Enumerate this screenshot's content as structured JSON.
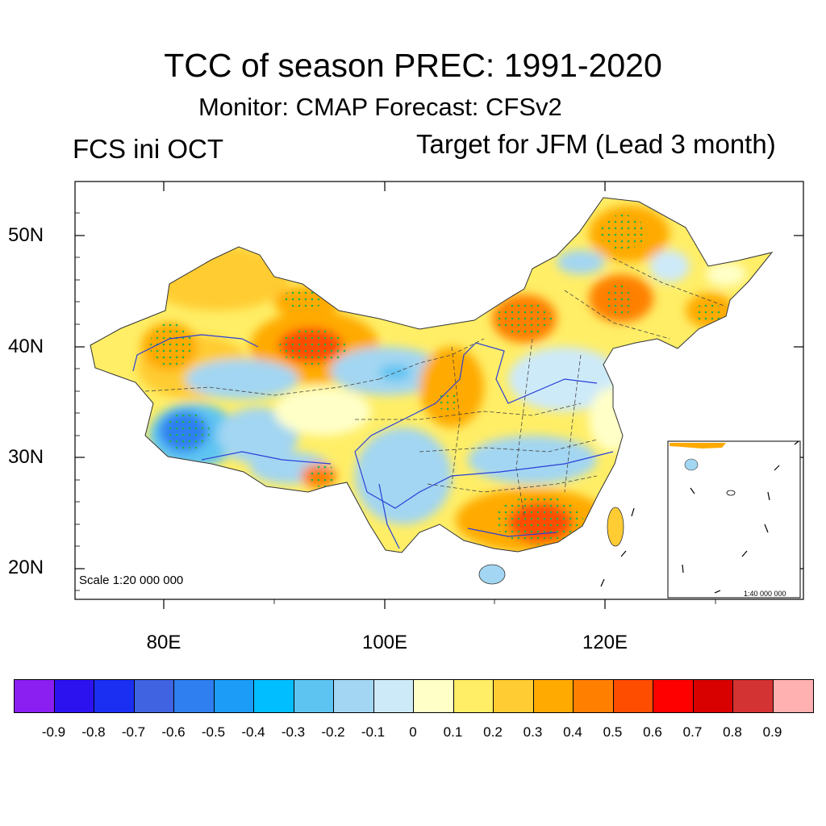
{
  "title": "TCC of season PREC: 1991-2020",
  "subtitle": "Monitor: CMAP   Forecast: CFSv2",
  "left_label": "FCS ini OCT",
  "right_label": "Target for JFM (Lead 3 month)",
  "map": {
    "lat_labels": [
      "50N",
      "40N",
      "30N",
      "20N"
    ],
    "lon_labels": [
      "80E",
      "100E",
      "120E"
    ],
    "scale_main": "Scale 1:20 000 000",
    "scale_inset": "1:40 000 000"
  },
  "colorbar": {
    "labels": [
      "-0.9",
      "-0.8",
      "-0.7",
      "-0.6",
      "-0.5",
      "-0.4",
      "-0.3",
      "-0.2",
      "-0.1",
      "0",
      "0.1",
      "0.2",
      "0.3",
      "0.4",
      "0.5",
      "0.6",
      "0.7",
      "0.8",
      "0.9"
    ],
    "colors": [
      "#8B1FF2",
      "#2D12F0",
      "#1A2FF2",
      "#3F63E1",
      "#2F7FF0",
      "#1C9CF7",
      "#00BEFF",
      "#5DC4F2",
      "#A3D6F2",
      "#CDEAF9",
      "#FFFFC8",
      "#FFEE66",
      "#FFCC33",
      "#FFAA00",
      "#FF8000",
      "#FF4D00",
      "#FF0000",
      "#D90000",
      "#D43333",
      "#FFB0B0"
    ]
  }
}
